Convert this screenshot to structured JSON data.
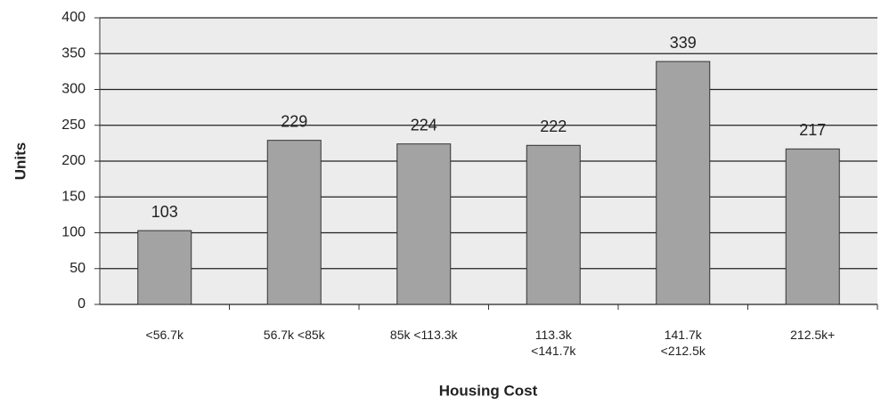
{
  "chart_data": {
    "type": "bar",
    "x_label": "Housing Cost",
    "y_label": "Units",
    "categories": [
      "<56.7k",
      "56.7k <85k",
      "85k <113.3k",
      "113.3k <141.7k",
      "141.7k <212.5k",
      "212.5k+"
    ],
    "values": [
      103,
      229,
      224,
      222,
      339,
      217
    ],
    "color": "#a3a3a3",
    "ylim": [
      0,
      400
    ],
    "yticks": [
      0,
      50,
      100,
      150,
      200,
      250,
      300,
      350,
      400
    ],
    "grid": true
  }
}
